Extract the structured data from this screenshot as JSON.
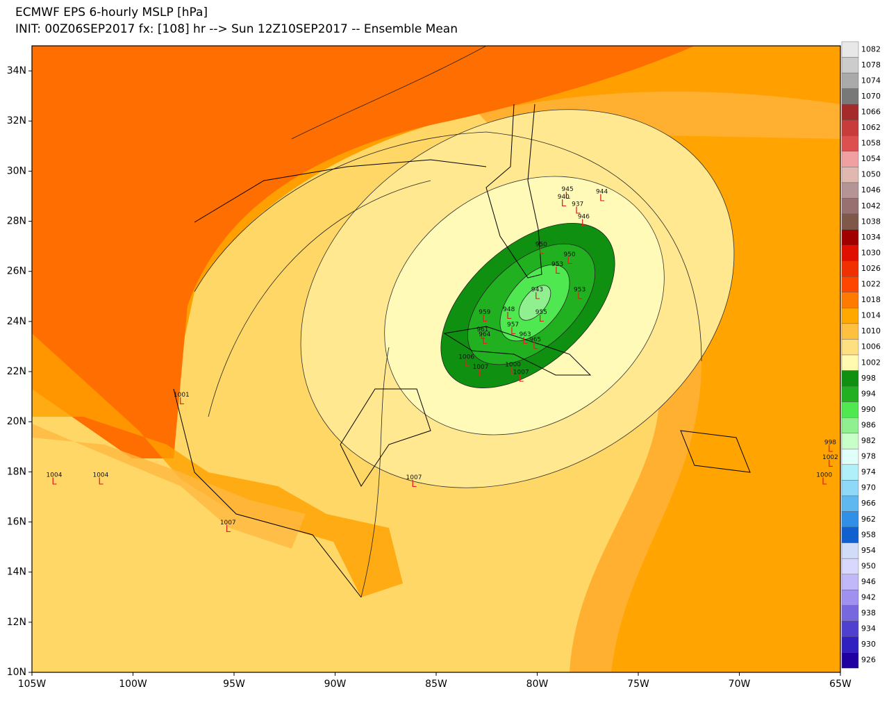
{
  "header": {
    "title": "ECMWF EPS 6-hourly MSLP [hPa]",
    "subtitle": "INIT: 00Z06SEP2017 fx: [108] hr --> Sun 12Z10SEP2017 -- Ensemble Mean"
  },
  "map": {
    "lonlim": [
      -105,
      -65
    ],
    "latlim": [
      10,
      35
    ],
    "lat_ticks": [
      {
        "value": 10,
        "label": "10N"
      },
      {
        "value": 12,
        "label": "12N"
      },
      {
        "value": 14,
        "label": "14N"
      },
      {
        "value": 16,
        "label": "16N"
      },
      {
        "value": 18,
        "label": "18N"
      },
      {
        "value": 20,
        "label": "20N"
      },
      {
        "value": 22,
        "label": "22N"
      },
      {
        "value": 24,
        "label": "24N"
      },
      {
        "value": 26,
        "label": "26N"
      },
      {
        "value": 28,
        "label": "28N"
      },
      {
        "value": 30,
        "label": "30N"
      },
      {
        "value": 32,
        "label": "32N"
      },
      {
        "value": 34,
        "label": "34N"
      }
    ],
    "lon_ticks": [
      {
        "value": -105,
        "label": "105W"
      },
      {
        "value": -100,
        "label": "100W"
      },
      {
        "value": -95,
        "label": "95W"
      },
      {
        "value": -90,
        "label": "90W"
      },
      {
        "value": -85,
        "label": "85W"
      },
      {
        "value": -80,
        "label": "80W"
      },
      {
        "value": -75,
        "label": "75W"
      },
      {
        "value": -70,
        "label": "70W"
      },
      {
        "value": -65,
        "label": "65W"
      }
    ],
    "low_symbol": "L",
    "lows": [
      {
        "pressure": 1001,
        "lon": -97.6,
        "lat": 20.8
      },
      {
        "pressure": 1004,
        "lon": -103.9,
        "lat": 17.6
      },
      {
        "pressure": 1004,
        "lon": -101.6,
        "lat": 17.6
      },
      {
        "pressure": 1007,
        "lon": -95.3,
        "lat": 15.7
      },
      {
        "pressure": 1007,
        "lon": -86.1,
        "lat": 17.5
      },
      {
        "pressure": 1006,
        "lon": -83.5,
        "lat": 22.3
      },
      {
        "pressure": 1007,
        "lon": -82.8,
        "lat": 21.9
      },
      {
        "pressure": 945,
        "lon": -78.5,
        "lat": 29.0
      },
      {
        "pressure": 940,
        "lon": -78.7,
        "lat": 28.7
      },
      {
        "pressure": 944,
        "lon": -76.8,
        "lat": 28.9
      },
      {
        "pressure": 937,
        "lon": -78.0,
        "lat": 28.4
      },
      {
        "pressure": 946,
        "lon": -77.7,
        "lat": 27.9
      },
      {
        "pressure": 950,
        "lon": -79.8,
        "lat": 26.8
      },
      {
        "pressure": 950,
        "lon": -78.4,
        "lat": 26.4
      },
      {
        "pressure": 953,
        "lon": -79.0,
        "lat": 26.0
      },
      {
        "pressure": 953,
        "lon": -77.9,
        "lat": 25.0
      },
      {
        "pressure": 943,
        "lon": -80.0,
        "lat": 25.0
      },
      {
        "pressure": 955,
        "lon": -79.8,
        "lat": 24.1
      },
      {
        "pressure": 948,
        "lon": -81.4,
        "lat": 24.2
      },
      {
        "pressure": 959,
        "lon": -82.6,
        "lat": 24.1
      },
      {
        "pressure": 961,
        "lon": -82.7,
        "lat": 23.4
      },
      {
        "pressure": 964,
        "lon": -82.6,
        "lat": 23.2
      },
      {
        "pressure": 957,
        "lon": -81.2,
        "lat": 23.6
      },
      {
        "pressure": 963,
        "lon": -80.6,
        "lat": 23.2
      },
      {
        "pressure": 965,
        "lon": -80.1,
        "lat": 23.0
      },
      {
        "pressure": 1000,
        "lon": -81.2,
        "lat": 22.0
      },
      {
        "pressure": 1007,
        "lon": -80.8,
        "lat": 21.7
      },
      {
        "pressure": 998,
        "lon": -65.5,
        "lat": 18.9
      },
      {
        "pressure": 1002,
        "lon": -65.5,
        "lat": 18.3
      },
      {
        "pressure": 1000,
        "lon": -65.8,
        "lat": 17.6
      }
    ]
  },
  "colorbar": {
    "levels": [
      1082,
      1078,
      1074,
      1070,
      1066,
      1062,
      1058,
      1054,
      1050,
      1046,
      1042,
      1038,
      1034,
      1030,
      1026,
      1022,
      1018,
      1014,
      1010,
      1006,
      1002,
      998,
      994,
      990,
      986,
      982,
      978,
      974,
      970,
      966,
      962,
      958,
      954,
      950,
      946,
      942,
      938,
      934,
      930,
      926
    ],
    "colors": [
      "#e8e8e8",
      "#cccccc",
      "#aaaaaa",
      "#787878",
      "#a52a2a",
      "#c83c3c",
      "#dc5050",
      "#f0a0a0",
      "#e0b8b0",
      "#b49494",
      "#987070",
      "#80584a",
      "#a00000",
      "#e01000",
      "#f03000",
      "#ff4600",
      "#ff7a00",
      "#ffa800",
      "#ffc040",
      "#ffe080",
      "#fffab0",
      "#109010",
      "#20b020",
      "#50e850",
      "#90f090",
      "#c8ffc8",
      "#e0fff8",
      "#b0f0f8",
      "#90d8f8",
      "#60b8f0",
      "#3090e8",
      "#1060d0",
      "#d0dcf8",
      "#d8d8ff",
      "#c0b8f8",
      "#a090f0",
      "#7868e0",
      "#5040d0",
      "#3020c0",
      "#2000a0"
    ]
  }
}
